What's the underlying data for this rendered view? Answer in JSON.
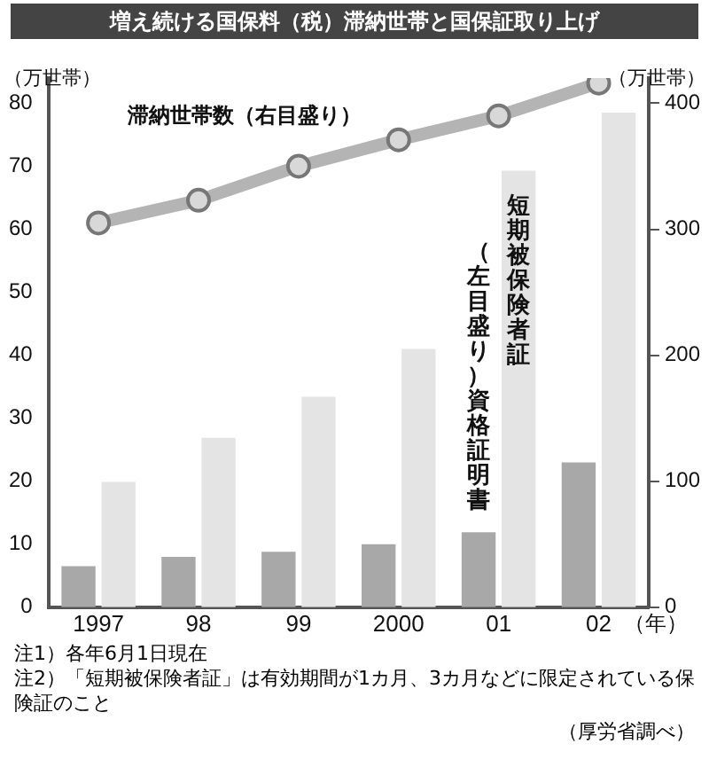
{
  "chart_data": {
    "type": "bar",
    "title": "増え続ける国保料（税）滞納世帯と国保証取り上げ",
    "ylabel": "（万世帯）",
    "y2label": "（万世帯）",
    "xlabel": "（年）",
    "categories": [
      "1997",
      "98",
      "99",
      "2000",
      "01",
      "02"
    ],
    "series": [
      {
        "name": "（左目盛り）資格証明書",
        "color": "#a8a8a8",
        "values": [
          6.5,
          8,
          8.8,
          10,
          11.9,
          23
        ]
      },
      {
        "name": "短期被保険者証",
        "color": "#e4e4e4",
        "values": [
          19.9,
          26.9,
          33.4,
          41,
          69.3,
          78.5
        ]
      },
      {
        "name": "滞納世帯数（右目盛り）",
        "type": "line",
        "axis": "y2",
        "color": "#b4b4b4",
        "values": [
          305,
          323,
          350,
          371,
          390,
          416
        ]
      }
    ],
    "ylim": [
      0,
      84
    ],
    "yticks": [
      0,
      10,
      20,
      30,
      40,
      50,
      60,
      70,
      80
    ],
    "y2lim": [
      0,
      420
    ],
    "y2ticks": [
      0,
      100,
      200,
      300,
      400
    ],
    "marker": "circle",
    "grid": false,
    "legend": false,
    "annotations": [
      "注1）各年6月1日現在",
      "注2）「短期被保険者証」は有効期間が1カ月、3カ月などに限定されている保険証のこと",
      "（厚労省調べ）"
    ]
  }
}
